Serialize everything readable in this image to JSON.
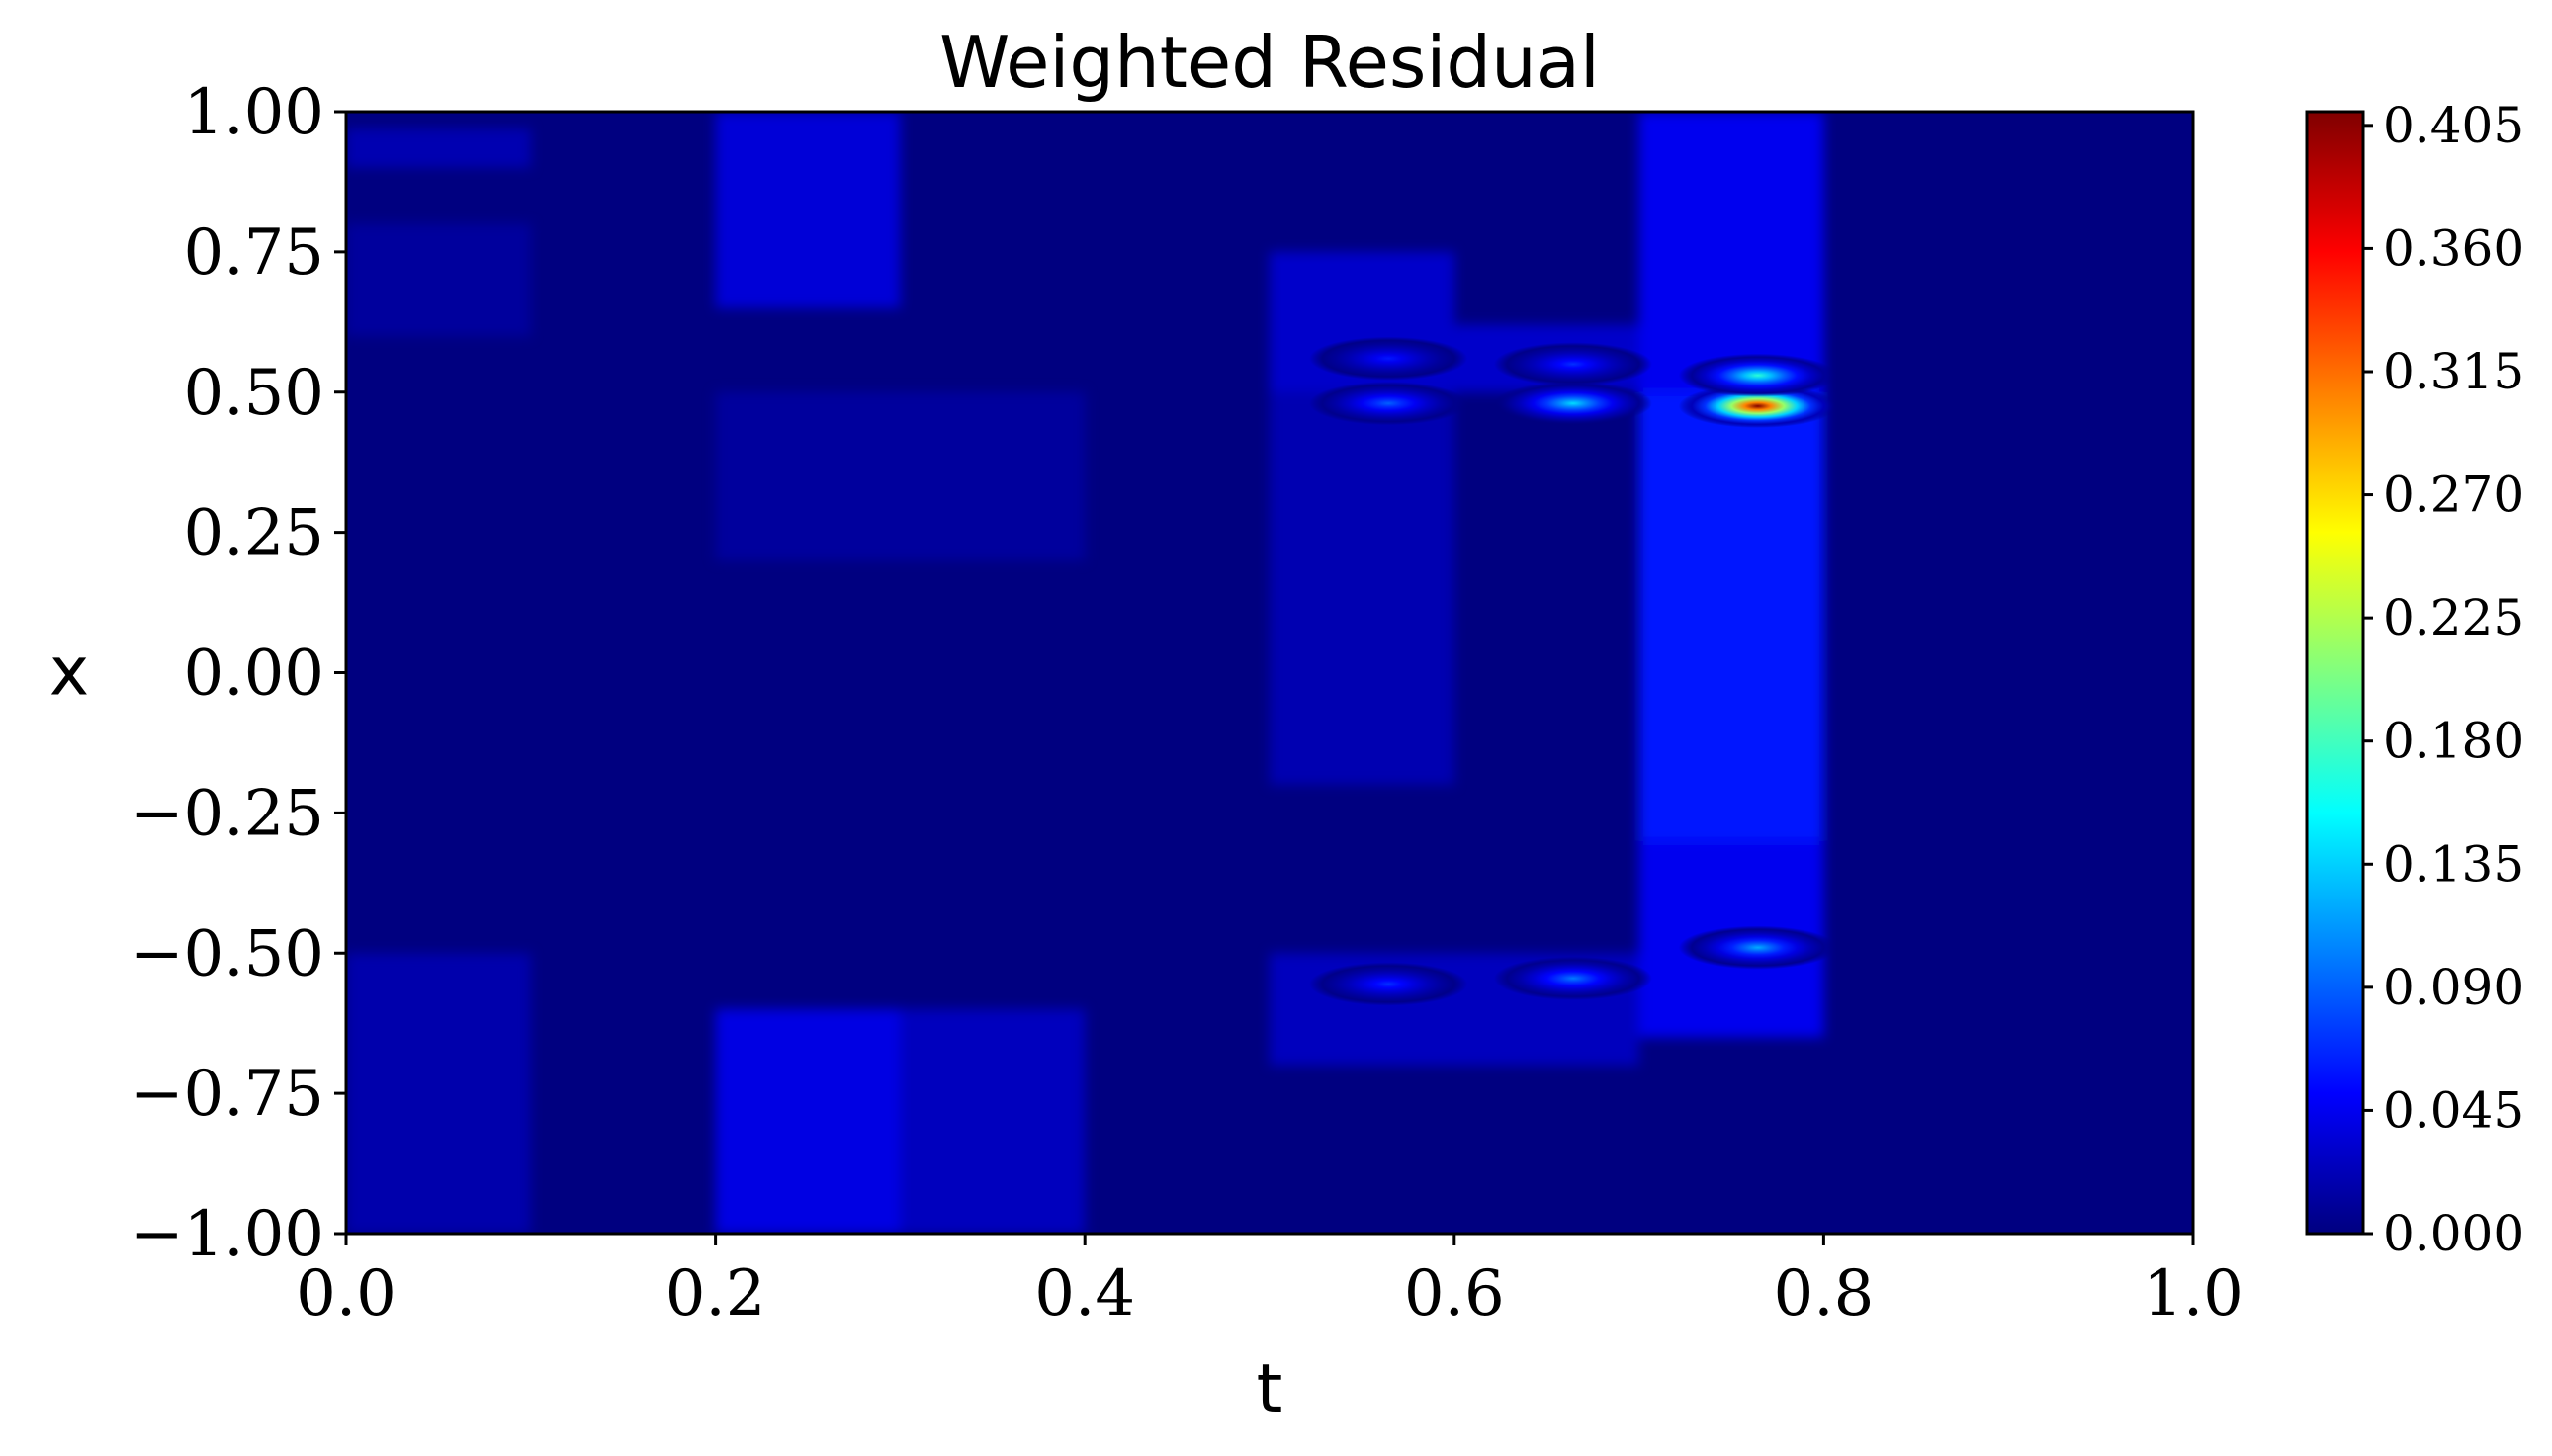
{
  "chart_data": {
    "type": "heatmap",
    "title": "Weighted Residual",
    "xlabel": "t",
    "ylabel": "x",
    "xlim": [
      0.0,
      1.0
    ],
    "ylim": [
      -1.0,
      1.0
    ],
    "xticks": [
      "0.0",
      "0.2",
      "0.4",
      "0.6",
      "0.8",
      "1.0"
    ],
    "yticks": [
      "1.00",
      "0.75",
      "0.50",
      "0.25",
      "0.00",
      "−0.25",
      "−0.50",
      "−0.75",
      "−1.00"
    ],
    "colormap": "jet",
    "colorbar": {
      "min": 0.0,
      "max": 0.41,
      "ticks": [
        "0.405",
        "0.360",
        "0.315",
        "0.270",
        "0.225",
        "0.180",
        "0.135",
        "0.090",
        "0.045",
        "0.000"
      ],
      "tick_values": [
        0.405,
        0.36,
        0.315,
        0.27,
        0.225,
        0.18,
        0.135,
        0.09,
        0.045,
        0.0
      ]
    },
    "background_level": 0.0,
    "regions": [
      {
        "t": [
          0.0,
          0.1
        ],
        "x": [
          0.9,
          0.97
        ],
        "value": 0.02
      },
      {
        "t": [
          0.0,
          0.1
        ],
        "x": [
          0.6,
          0.8
        ],
        "value": 0.012
      },
      {
        "t": [
          0.0,
          0.1
        ],
        "x": [
          -1.0,
          -0.5
        ],
        "value": 0.018
      },
      {
        "t": [
          0.2,
          0.3
        ],
        "x": [
          0.65,
          1.0
        ],
        "value": 0.035
      },
      {
        "t": [
          0.2,
          0.4
        ],
        "x": [
          0.2,
          0.5
        ],
        "value": 0.012
      },
      {
        "t": [
          0.2,
          0.3
        ],
        "x": [
          -1.0,
          -0.6
        ],
        "value": 0.04
      },
      {
        "t": [
          0.3,
          0.4
        ],
        "x": [
          -1.0,
          -0.6
        ],
        "value": 0.025
      },
      {
        "t": [
          0.5,
          0.6
        ],
        "x": [
          0.5,
          0.75
        ],
        "value": 0.03
      },
      {
        "t": [
          0.5,
          0.6
        ],
        "x": [
          -0.2,
          0.5
        ],
        "value": 0.02
      },
      {
        "t": [
          0.5,
          0.7
        ],
        "x": [
          -0.7,
          -0.5
        ],
        "value": 0.025
      },
      {
        "t": [
          0.6,
          0.7
        ],
        "x": [
          0.5,
          0.62
        ],
        "value": 0.03
      },
      {
        "t": [
          0.7,
          0.8
        ],
        "x": [
          -0.65,
          1.0
        ],
        "value": 0.045
      },
      {
        "t": [
          0.7,
          0.8
        ],
        "x": [
          -0.3,
          0.5
        ],
        "value": 0.06
      }
    ],
    "hotspots": [
      {
        "t": 0.79,
        "x": 0.475,
        "value": 0.41
      },
      {
        "t": 0.79,
        "x": 0.53,
        "value": 0.17
      },
      {
        "t": 0.69,
        "x": 0.48,
        "value": 0.14
      },
      {
        "t": 0.59,
        "x": 0.48,
        "value": 0.09
      },
      {
        "t": 0.59,
        "x": 0.56,
        "value": 0.06
      },
      {
        "t": 0.69,
        "x": 0.55,
        "value": 0.07
      },
      {
        "t": 0.79,
        "x": -0.49,
        "value": 0.12
      },
      {
        "t": 0.69,
        "x": -0.545,
        "value": 0.1
      },
      {
        "t": 0.59,
        "x": -0.555,
        "value": 0.07
      }
    ]
  }
}
